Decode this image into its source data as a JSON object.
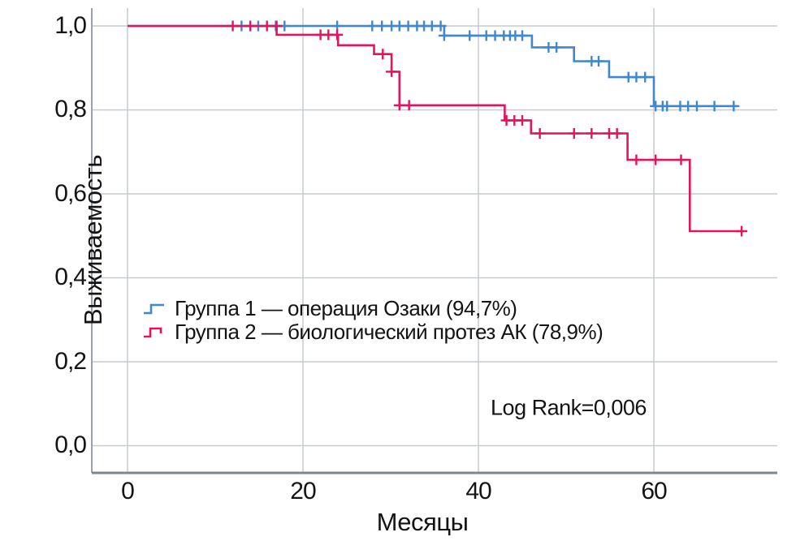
{
  "figure": {
    "y_axis_title": "Выживаемость",
    "x_axis_title": "Месяцы",
    "annotation": "Log Rank=0,006",
    "legend": [
      {
        "label": "Группа 1 — операция Озаки (94,7%)",
        "color": "#3f87cf"
      },
      {
        "label": "Группа 2 — биологический протез АК (78,9%)",
        "color": "#e4135e"
      }
    ]
  },
  "colors": {
    "group1_blue": "#3f87cf",
    "group2_red": "#e4135e",
    "gridline": "#c6cbcf",
    "axis_bottom": "#7e868e",
    "axis_left": "#9aa1a8",
    "text": "#141414",
    "background": "#ffffff"
  },
  "chart_data": {
    "type": "line",
    "subtype": "kaplan-meier-step",
    "title": "",
    "xlabel": "Месяцы",
    "ylabel": "Выживаемость",
    "xlim": [
      -4.07,
      74.07
    ],
    "ylim": [
      -0.0648,
      1.0425
    ],
    "grid": true,
    "legend_position": "inside-left-middle",
    "annotation": "Log Rank=0,006",
    "xticks": {
      "values": [
        0,
        20,
        40,
        60
      ],
      "labels": [
        "0",
        "20",
        "40",
        "60"
      ]
    },
    "yticks": {
      "values": [
        0.0,
        0.2,
        0.4,
        0.6,
        0.8,
        1.0
      ],
      "labels": [
        "0,0",
        "0,2",
        "0,4",
        "0,6",
        "0,8",
        "1,0"
      ]
    },
    "series": [
      {
        "name": "Группа 1 — операция Озаки (94,7%)",
        "color": "#3f87cf",
        "final_value": 0.81,
        "steps": [
          [
            0,
            1.0
          ],
          [
            36.1,
            1.0
          ],
          [
            36.1,
            0.977
          ],
          [
            46.1,
            0.977
          ],
          [
            46.1,
            0.949
          ],
          [
            50.9,
            0.949
          ],
          [
            50.9,
            0.916
          ],
          [
            54.9,
            0.916
          ],
          [
            54.9,
            0.878
          ],
          [
            60.0,
            0.878
          ],
          [
            60.0,
            0.809
          ],
          [
            69.5,
            0.809
          ]
        ],
        "censor_marks": [
          [
            13.0,
            1.0
          ],
          [
            14.9,
            1.0
          ],
          [
            16.9,
            1.0
          ],
          [
            17.9,
            1.0
          ],
          [
            23.9,
            1.0
          ],
          [
            27.9,
            1.0
          ],
          [
            29.0,
            1.0
          ],
          [
            30.1,
            1.0
          ],
          [
            31.0,
            1.0
          ],
          [
            32.0,
            1.0
          ],
          [
            33.0,
            1.0
          ],
          [
            33.8,
            1.0
          ],
          [
            34.7,
            1.0
          ],
          [
            35.7,
            1.0
          ],
          [
            36.1,
            0.977
          ],
          [
            39.0,
            0.977
          ],
          [
            40.9,
            0.977
          ],
          [
            41.9,
            0.977
          ],
          [
            42.9,
            0.977
          ],
          [
            43.6,
            0.977
          ],
          [
            44.2,
            0.977
          ],
          [
            45.0,
            0.977
          ],
          [
            48.0,
            0.949
          ],
          [
            48.9,
            0.949
          ],
          [
            52.9,
            0.916
          ],
          [
            53.7,
            0.916
          ],
          [
            57.1,
            0.878
          ],
          [
            58.0,
            0.878
          ],
          [
            59.0,
            0.878
          ],
          [
            60.2,
            0.809
          ],
          [
            61.0,
            0.809
          ],
          [
            61.5,
            0.809
          ],
          [
            63.0,
            0.809
          ],
          [
            63.9,
            0.809
          ],
          [
            64.9,
            0.809
          ],
          [
            66.9,
            0.809
          ],
          [
            69.1,
            0.809
          ]
        ]
      },
      {
        "name": "Группа 2 — биологический протез АК (78,9%)",
        "color": "#e4135e",
        "final_value": 0.51,
        "steps": [
          [
            0,
            1.0
          ],
          [
            17.0,
            1.0
          ],
          [
            17.0,
            0.979
          ],
          [
            24.0,
            0.979
          ],
          [
            24.0,
            0.954
          ],
          [
            28.1,
            0.954
          ],
          [
            28.1,
            0.933
          ],
          [
            30.1,
            0.933
          ],
          [
            30.1,
            0.891
          ],
          [
            31.0,
            0.891
          ],
          [
            31.0,
            0.811
          ],
          [
            43.0,
            0.811
          ],
          [
            43.0,
            0.775
          ],
          [
            46.0,
            0.775
          ],
          [
            46.0,
            0.744
          ],
          [
            57.0,
            0.744
          ],
          [
            57.0,
            0.681
          ],
          [
            64.1,
            0.681
          ],
          [
            64.1,
            0.511
          ],
          [
            70.3,
            0.511
          ]
        ],
        "censor_marks": [
          [
            12.0,
            1.0
          ],
          [
            14.0,
            1.0
          ],
          [
            15.9,
            1.0
          ],
          [
            17.0,
            1.0
          ],
          [
            22.0,
            0.979
          ],
          [
            22.9,
            0.979
          ],
          [
            23.9,
            0.979
          ],
          [
            29.1,
            0.933
          ],
          [
            30.1,
            0.891
          ],
          [
            31.0,
            0.811
          ],
          [
            32.1,
            0.811
          ],
          [
            43.2,
            0.775
          ],
          [
            44.1,
            0.775
          ],
          [
            45.0,
            0.775
          ],
          [
            47.0,
            0.744
          ],
          [
            50.9,
            0.744
          ],
          [
            52.9,
            0.744
          ],
          [
            54.9,
            0.744
          ],
          [
            55.8,
            0.744
          ],
          [
            58.0,
            0.681
          ],
          [
            60.2,
            0.681
          ],
          [
            63.1,
            0.681
          ],
          [
            70.0,
            0.511
          ]
        ]
      }
    ]
  }
}
